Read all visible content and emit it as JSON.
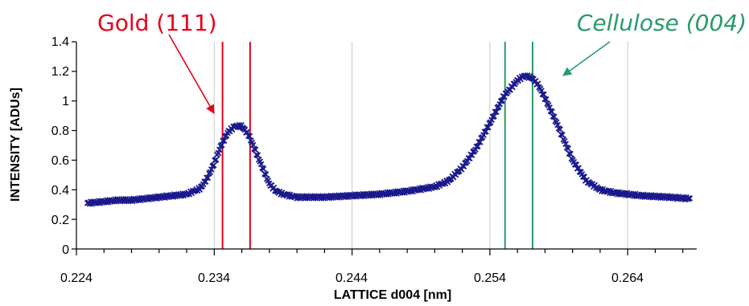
{
  "chart_data": {
    "type": "scatter",
    "xlabel": "LATTICE d004 [nm]",
    "ylabel": "INTENSITY [ADUs]",
    "xlim": [
      0.224,
      0.269
    ],
    "ylim": [
      0,
      1.4
    ],
    "x_ticks": [
      "0.224",
      "0.234",
      "0.244",
      "0.254",
      "0.264"
    ],
    "y_ticks": [
      "0",
      "0.2",
      "0.4",
      "0.6",
      "0.8",
      "1",
      "1.2",
      "1.4"
    ],
    "grid": "vertical",
    "series": [
      {
        "color": "#1a1a8c",
        "marker": "x",
        "points": [
          [
            0.2248,
            0.31
          ],
          [
            0.226,
            0.32
          ],
          [
            0.227,
            0.33
          ],
          [
            0.228,
            0.33
          ],
          [
            0.229,
            0.34
          ],
          [
            0.23,
            0.35
          ],
          [
            0.231,
            0.36
          ],
          [
            0.232,
            0.37
          ],
          [
            0.233,
            0.41
          ],
          [
            0.2335,
            0.48
          ],
          [
            0.234,
            0.58
          ],
          [
            0.2345,
            0.7
          ],
          [
            0.235,
            0.79
          ],
          [
            0.2355,
            0.83
          ],
          [
            0.236,
            0.83
          ],
          [
            0.2365,
            0.77
          ],
          [
            0.237,
            0.66
          ],
          [
            0.2375,
            0.55
          ],
          [
            0.238,
            0.44
          ],
          [
            0.2385,
            0.39
          ],
          [
            0.239,
            0.37
          ],
          [
            0.24,
            0.35
          ],
          [
            0.241,
            0.35
          ],
          [
            0.242,
            0.35
          ],
          [
            0.244,
            0.36
          ],
          [
            0.246,
            0.37
          ],
          [
            0.248,
            0.39
          ],
          [
            0.25,
            0.42
          ],
          [
            0.251,
            0.46
          ],
          [
            0.252,
            0.55
          ],
          [
            0.253,
            0.68
          ],
          [
            0.254,
            0.85
          ],
          [
            0.255,
            1.03
          ],
          [
            0.256,
            1.14
          ],
          [
            0.2565,
            1.17
          ],
          [
            0.257,
            1.16
          ],
          [
            0.2575,
            1.11
          ],
          [
            0.258,
            1.02
          ],
          [
            0.259,
            0.82
          ],
          [
            0.26,
            0.6
          ],
          [
            0.261,
            0.46
          ],
          [
            0.262,
            0.4
          ],
          [
            0.263,
            0.38
          ],
          [
            0.265,
            0.36
          ],
          [
            0.267,
            0.35
          ],
          [
            0.2685,
            0.34
          ]
        ]
      }
    ],
    "reference_lines": [
      {
        "x": 0.2346,
        "color": "#e8001c",
        "group": "gold"
      },
      {
        "x": 0.2366,
        "color": "#e8001c",
        "group": "gold"
      },
      {
        "x": 0.2551,
        "color": "#2a9a6e",
        "group": "cellulose"
      },
      {
        "x": 0.2571,
        "color": "#2a9a6e",
        "group": "cellulose"
      }
    ],
    "annotations": [
      {
        "text": "Gold (111)",
        "color": "#e8001c",
        "italic": false
      },
      {
        "text": "Cellulose (004)",
        "color": "#2a9a6e",
        "italic": true
      }
    ]
  }
}
